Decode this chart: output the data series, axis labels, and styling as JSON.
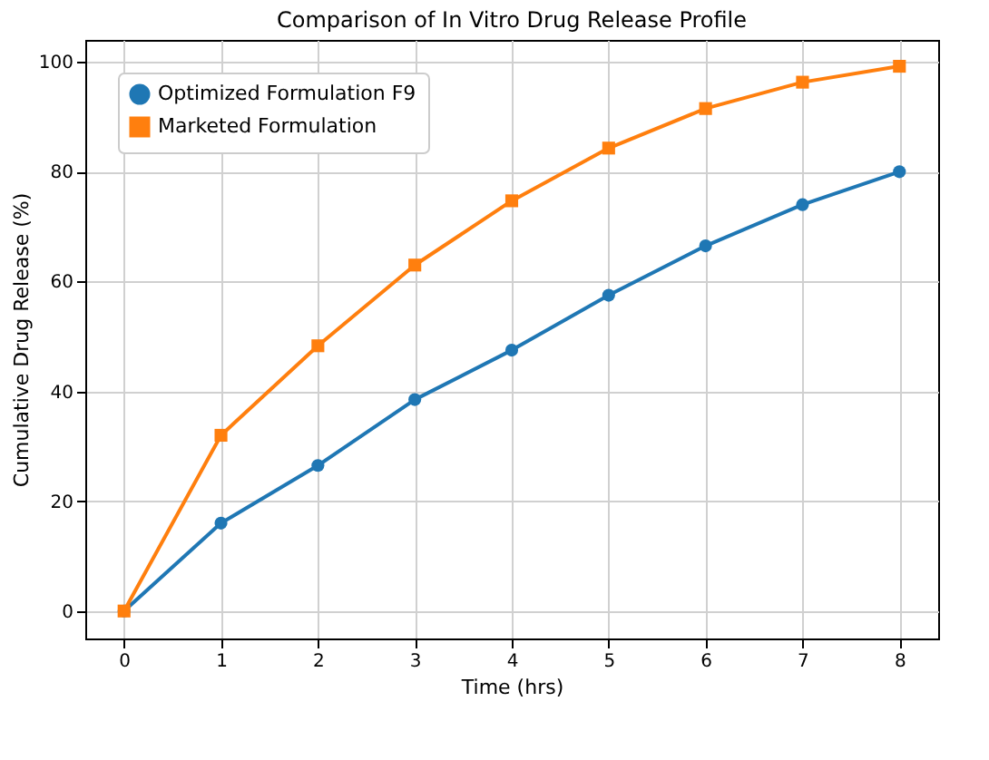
{
  "chart_data": {
    "type": "line",
    "title": "Comparison of In Vitro Drug Release Profile",
    "xlabel": "Time (hrs)",
    "ylabel": "Cumulative Drug Release (%)",
    "x": [
      0,
      1,
      2,
      3,
      4,
      5,
      6,
      7,
      8
    ],
    "series": [
      {
        "name": "Optimized Formulation F9",
        "color": "#1f77b4",
        "marker": "circle",
        "values": [
          0,
          16,
          26.5,
          38.5,
          47.5,
          57.5,
          66.5,
          74,
          80
        ]
      },
      {
        "name": "Marketed Formulation",
        "color": "#ff7f0e",
        "marker": "square",
        "values": [
          0,
          32,
          48.3,
          63,
          74.7,
          84.3,
          91.5,
          96.3,
          99.2
        ]
      }
    ],
    "xlim": [
      -0.4,
      8.4
    ],
    "xticks": [
      0,
      1,
      2,
      3,
      4,
      5,
      6,
      7,
      8
    ],
    "ylim": [
      -5,
      104
    ],
    "yticks": [
      0,
      20,
      40,
      60,
      80,
      100
    ],
    "grid": true,
    "legend": "top left",
    "line_style": "solid"
  }
}
